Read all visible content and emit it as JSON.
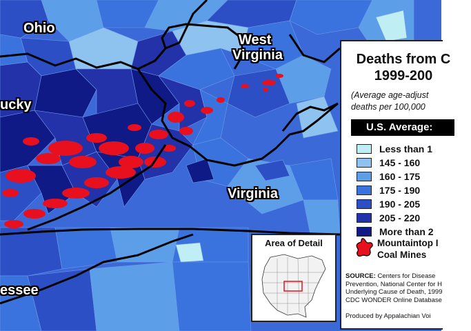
{
  "title": "Deaths from C...\n1999-200...",
  "title_line1": "Deaths from C",
  "title_line2": "1999-200",
  "subtitle_line1": "(Average age-adjust",
  "subtitle_line2": "deaths per 100,000",
  "us_average_label": "U.S. Average:",
  "legend": [
    {
      "label": "Less than 1",
      "color": "#bfeff4"
    },
    {
      "label": "145 - 160",
      "color": "#8ec3f0"
    },
    {
      "label": "160 - 175",
      "color": "#5d9ee9"
    },
    {
      "label": "175 - 190",
      "color": "#3b73de"
    },
    {
      "label": "190 - 205",
      "color": "#2d4fc6"
    },
    {
      "label": "205 - 220",
      "color": "#2432aa"
    },
    {
      "label": "More than 2",
      "color": "#101a86"
    }
  ],
  "mine_legend": {
    "line1": "Mountaintop I",
    "line2": "Coal Mines",
    "color": "#e8101e",
    "icon": "red-splotch-icon"
  },
  "source": {
    "label": "SOURCE:",
    "line1": " Centers for Disease",
    "line2": "Prevention, National Center for H",
    "line3": "Underlying Cause of Death, 1999",
    "line4": "CDC WONDER Online Database"
  },
  "produced_by": "Produced by Appalachian Voi",
  "inset": {
    "title": "Area of Detail"
  },
  "state_labels": {
    "ohio": "Ohio",
    "west_virginia_1": "West",
    "west_virginia_2": "Virginia",
    "kentucky": "ucky",
    "virginia": "Virginia",
    "tennessee": "essee"
  },
  "colors": {
    "border": "#000000",
    "mines": "#e8101e",
    "background": "#3b6ad8"
  }
}
